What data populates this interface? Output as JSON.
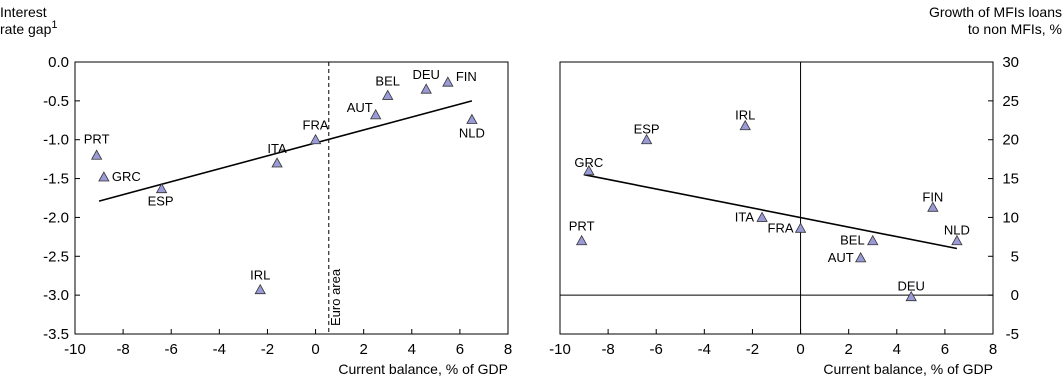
{
  "chart_data": [
    {
      "type": "scatter",
      "ylabel": [
        "Interest",
        "rate gap"
      ],
      "ylabel_superscript": "1",
      "xlabel": "Current balance, % of GDP",
      "xlim": [
        -10,
        8
      ],
      "ylim": [
        -3.5,
        0
      ],
      "xticks": [
        -10,
        -8,
        -6,
        -4,
        -2,
        0,
        2,
        4,
        6,
        8
      ],
      "yticks": [
        0,
        -0.5,
        -1,
        -1.5,
        -2,
        -2.5,
        -3,
        -3.5
      ],
      "ytick_labels": [
        "0.0",
        "-0.5",
        "-1.0",
        "-1.5",
        "-2.0",
        "-2.5",
        "-3.0",
        "-3.5"
      ],
      "y_axis_side": "left",
      "marker_color": "#9a9ad6",
      "points": [
        {
          "label": "PRT",
          "x": -9.1,
          "y": -1.2
        },
        {
          "label": "GRC",
          "x": -8.8,
          "y": -1.48
        },
        {
          "label": "ESP",
          "x": -6.4,
          "y": -1.63
        },
        {
          "label": "IRL",
          "x": -2.3,
          "y": -2.93
        },
        {
          "label": "ITA",
          "x": -1.6,
          "y": -1.3
        },
        {
          "label": "FRA",
          "x": 0.0,
          "y": -1.0
        },
        {
          "label": "AUT",
          "x": 2.5,
          "y": -0.68
        },
        {
          "label": "BEL",
          "x": 3.0,
          "y": -0.43
        },
        {
          "label": "DEU",
          "x": 4.6,
          "y": -0.35
        },
        {
          "label": "FIN",
          "x": 5.5,
          "y": -0.26
        },
        {
          "label": "NLD",
          "x": 6.5,
          "y": -0.74
        }
      ],
      "trendline": {
        "x": [
          -9.0,
          6.5
        ],
        "y": [
          -1.79,
          -0.5
        ]
      },
      "reference_line": {
        "orientation": "vertical",
        "x": 0.55,
        "style": "dashed",
        "label": "Euro area"
      }
    },
    {
      "type": "scatter",
      "ylabel": [
        "Growth of MFIs loans",
        "to non MFIs, %"
      ],
      "xlabel": "Current balance, % of GDP",
      "xlim": [
        -10,
        8
      ],
      "ylim": [
        -5,
        30
      ],
      "xticks": [
        -10,
        -8,
        -6,
        -4,
        -2,
        0,
        2,
        4,
        6,
        8
      ],
      "yticks": [
        30,
        25,
        20,
        15,
        10,
        5,
        0,
        -5
      ],
      "ytick_labels": [
        "30",
        "25",
        "20",
        "15",
        "10",
        "5",
        "0",
        "-5"
      ],
      "y_axis_side": "right",
      "marker_color": "#9a9ad6",
      "points": [
        {
          "label": "PRT",
          "x": -9.1,
          "y": 7.0
        },
        {
          "label": "GRC",
          "x": -8.8,
          "y": 16.0
        },
        {
          "label": "ESP",
          "x": -6.4,
          "y": 20.0
        },
        {
          "label": "IRL",
          "x": -2.3,
          "y": 21.8
        },
        {
          "label": "ITA",
          "x": -1.6,
          "y": 10.0
        },
        {
          "label": "FRA",
          "x": 0.0,
          "y": 8.6
        },
        {
          "label": "AUT",
          "x": 2.5,
          "y": 4.8
        },
        {
          "label": "BEL",
          "x": 3.0,
          "y": 7.0
        },
        {
          "label": "DEU",
          "x": 4.6,
          "y": -0.2
        },
        {
          "label": "FIN",
          "x": 5.5,
          "y": 11.3
        },
        {
          "label": "NLD",
          "x": 6.5,
          "y": 7.0
        }
      ],
      "trendline": {
        "x": [
          -9.0,
          6.5
        ],
        "y": [
          15.5,
          6.0
        ]
      },
      "reference_lines": [
        {
          "orientation": "vertical",
          "x": 0,
          "style": "solid"
        },
        {
          "orientation": "horizontal",
          "y": 0,
          "style": "solid"
        }
      ]
    }
  ]
}
